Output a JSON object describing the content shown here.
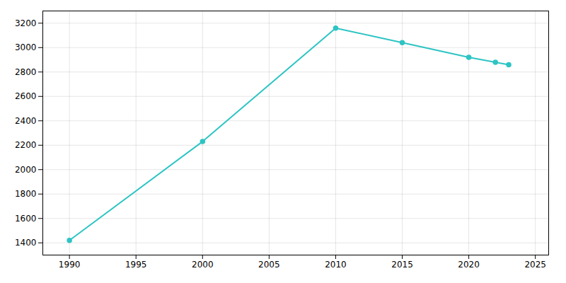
{
  "chart_data": {
    "type": "line",
    "x": [
      1990,
      2000,
      2010,
      2015,
      2020,
      2022,
      2023
    ],
    "values": [
      1420,
      2230,
      3160,
      3040,
      2920,
      2880,
      2860
    ],
    "color": "#2EC4C4",
    "marker": "circle",
    "xlim": [
      1988,
      2026
    ],
    "ylim": [
      1300,
      3300
    ],
    "xticks": [
      1990,
      1995,
      2000,
      2005,
      2010,
      2015,
      2020,
      2025
    ],
    "yticks": [
      1400,
      1600,
      1800,
      2000,
      2200,
      2400,
      2600,
      2800,
      3000,
      3200
    ],
    "grid": true
  }
}
